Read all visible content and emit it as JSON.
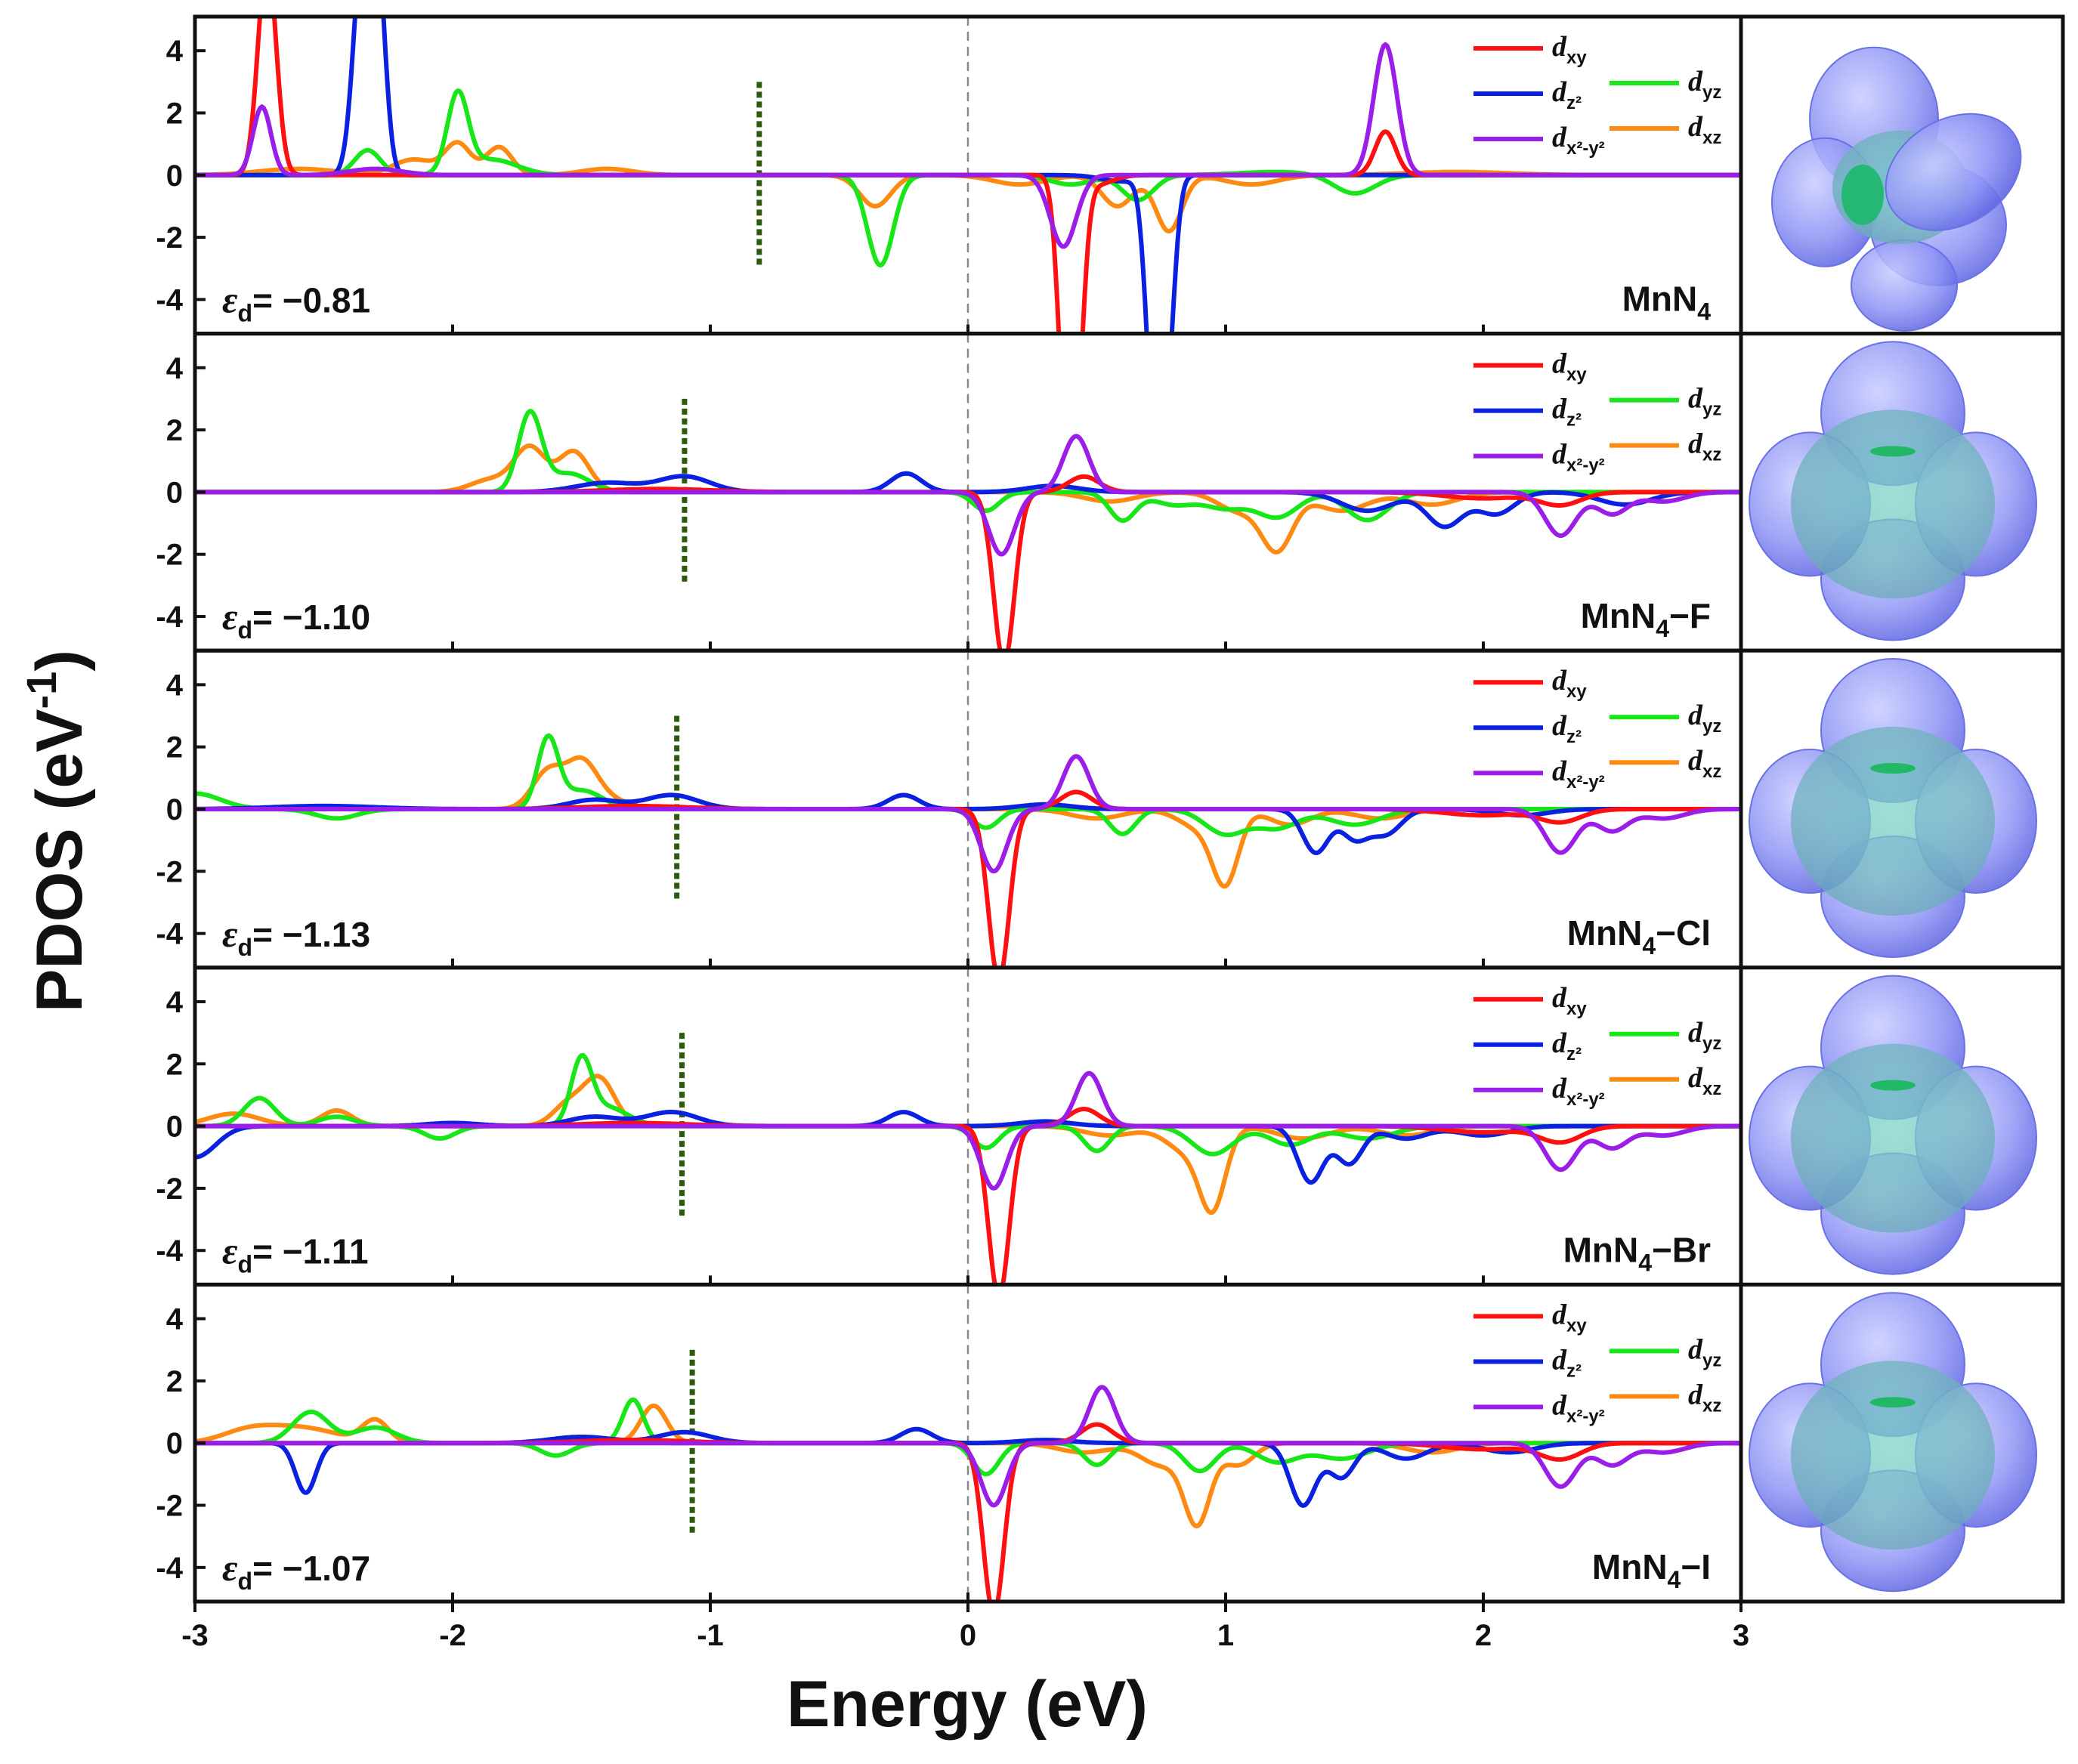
{
  "chart_data": {
    "type": "line",
    "title": "",
    "xlabel": "Energy (eV)",
    "ylabel": "PDOS  (eV",
    "ylabel_sup": "-1",
    "ylabel_close": ")",
    "xlim": [
      -3,
      3
    ],
    "ylim": [
      -5,
      5
    ],
    "x_ticks": [
      -3,
      -2,
      -1,
      0,
      1,
      2,
      3
    ],
    "y_ticks": [
      4,
      2,
      0,
      -2,
      -4
    ],
    "fermi_level": 0,
    "legend": [
      {
        "key": "dxy",
        "base": "d",
        "sub": "xy",
        "color": "#ff1010"
      },
      {
        "key": "dz2",
        "base": "d",
        "sub": "z²",
        "color": "#0a22e0"
      },
      {
        "key": "dx2y2",
        "base": "d",
        "sub": "x²-y²",
        "color": "#9a1ee8"
      },
      {
        "key": "dyz",
        "base": "d",
        "sub": "yz",
        "color": "#18e618"
      },
      {
        "key": "dxz",
        "base": "d",
        "sub": "xz",
        "color": "#ff8a12"
      }
    ],
    "d_band_center_line_color": "#2d5a0e",
    "panels": [
      {
        "name_main": "MnN",
        "name_sub": "4",
        "name_tail": "",
        "ed_label": "= −0.81",
        "d_band_center": -0.81,
        "peaks": {
          "dxy": [
            [
              -2.72,
              7.0,
              0.035
            ],
            [
              1.62,
              1.4,
              0.04
            ],
            [
              0.38,
              -7.0,
              0.03
            ],
            [
              0.42,
              -6.0,
              0.03
            ],
            [
              0.5,
              -0.3,
              0.06
            ]
          ],
          "dz2": [
            [
              -2.35,
              7.0,
              0.035
            ],
            [
              -2.29,
              6.0,
              0.03
            ],
            [
              0.72,
              -7.0,
              0.03
            ],
            [
              0.77,
              -6.0,
              0.03
            ],
            [
              0.6,
              -0.2,
              0.08
            ]
          ],
          "dx2y2": [
            [
              -2.74,
              2.2,
              0.035
            ],
            [
              1.62,
              4.2,
              0.045
            ],
            [
              0.37,
              -2.3,
              0.05
            ],
            [
              -2.3,
              0.2,
              0.1
            ]
          ],
          "dyz": [
            [
              -1.98,
              2.5,
              0.04
            ],
            [
              -2.33,
              0.8,
              0.05
            ],
            [
              -1.85,
              0.5,
              0.1
            ],
            [
              -0.34,
              -2.9,
              0.05
            ],
            [
              0.66,
              -0.8,
              0.06
            ],
            [
              0.4,
              -0.3,
              0.08
            ],
            [
              1.2,
              0.1,
              0.15
            ],
            [
              1.5,
              -0.6,
              0.08
            ]
          ],
          "dxz": [
            [
              -1.98,
              1.0,
              0.05
            ],
            [
              -1.82,
              0.9,
              0.05
            ],
            [
              -2.15,
              0.5,
              0.08
            ],
            [
              -2.6,
              0.2,
              0.15
            ],
            [
              -1.4,
              0.2,
              0.1
            ],
            [
              -0.36,
              -1.0,
              0.06
            ],
            [
              0.78,
              -1.8,
              0.05
            ],
            [
              0.58,
              -1.0,
              0.06
            ],
            [
              0.2,
              -0.3,
              0.1
            ],
            [
              1.1,
              -0.3,
              0.1
            ],
            [
              1.9,
              0.1,
              0.2
            ]
          ]
        }
      },
      {
        "name_main": "MnN",
        "name_sub": "4",
        "name_tail": "−F",
        "ed_label": "= −1.10",
        "d_band_center": -1.1,
        "peaks": {
          "dxy": [
            [
              0.14,
              -5.5,
              0.04
            ],
            [
              0.45,
              0.5,
              0.06
            ],
            [
              -1.2,
              0.1,
              0.2
            ],
            [
              2.3,
              -0.4,
              0.08
            ],
            [
              2.0,
              -0.2,
              0.15
            ]
          ],
          "dz2": [
            [
              -1.1,
              0.5,
              0.1
            ],
            [
              -1.4,
              0.3,
              0.12
            ],
            [
              -0.24,
              0.6,
              0.06
            ],
            [
              0.33,
              0.2,
              0.1
            ],
            [
              1.55,
              -0.6,
              0.1
            ],
            [
              1.85,
              -1.1,
              0.07
            ],
            [
              2.05,
              -0.7,
              0.07
            ],
            [
              2.55,
              -0.4,
              0.1
            ]
          ],
          "dx2y2": [
            [
              0.42,
              1.8,
              0.05
            ],
            [
              0.13,
              -2.0,
              0.05
            ],
            [
              2.3,
              -1.4,
              0.06
            ],
            [
              2.5,
              -0.7,
              0.06
            ],
            [
              2.7,
              -0.3,
              0.08
            ]
          ],
          "dyz": [
            [
              -1.7,
              2.5,
              0.045
            ],
            [
              -1.55,
              0.6,
              0.08
            ],
            [
              0.07,
              -0.6,
              0.05
            ],
            [
              0.6,
              -0.9,
              0.05
            ],
            [
              0.8,
              -0.4,
              0.08
            ],
            [
              1.2,
              -0.8,
              0.08
            ],
            [
              1.55,
              -0.9,
              0.08
            ],
            [
              1.0,
              -0.5,
              0.08
            ]
          ],
          "dxz": [
            [
              -1.7,
              1.4,
              0.06
            ],
            [
              -1.53,
              1.3,
              0.06
            ],
            [
              -1.85,
              0.4,
              0.08
            ],
            [
              1.2,
              -1.8,
              0.06
            ],
            [
              1.05,
              -0.6,
              0.08
            ],
            [
              1.45,
              -0.6,
              0.1
            ],
            [
              0.55,
              -0.3,
              0.1
            ],
            [
              1.8,
              -0.4,
              0.1
            ]
          ]
        }
      },
      {
        "name_main": "MnN",
        "name_sub": "4",
        "name_tail": "−Cl",
        "ed_label": "= −1.13",
        "d_band_center": -1.13,
        "peaks": {
          "dxy": [
            [
              0.12,
              -5.5,
              0.04
            ],
            [
              0.42,
              0.55,
              0.06
            ],
            [
              2.3,
              -0.4,
              0.08
            ],
            [
              2.0,
              -0.2,
              0.15
            ],
            [
              -1.3,
              0.1,
              0.2
            ]
          ],
          "dz2": [
            [
              -1.15,
              0.45,
              0.1
            ],
            [
              -1.45,
              0.3,
              0.1
            ],
            [
              -0.25,
              0.45,
              0.06
            ],
            [
              0.3,
              0.15,
              0.1
            ],
            [
              1.35,
              -1.4,
              0.05
            ],
            [
              1.5,
              -0.9,
              0.05
            ],
            [
              1.62,
              -0.8,
              0.06
            ],
            [
              2.15,
              -0.2,
              0.1
            ],
            [
              -2.5,
              0.1,
              0.2
            ]
          ],
          "dx2y2": [
            [
              0.42,
              1.7,
              0.05
            ],
            [
              0.1,
              -2.0,
              0.05
            ],
            [
              2.3,
              -1.4,
              0.06
            ],
            [
              2.5,
              -0.7,
              0.06
            ],
            [
              2.7,
              -0.3,
              0.08
            ]
          ],
          "dyz": [
            [
              -1.63,
              2.2,
              0.04
            ],
            [
              -1.5,
              0.6,
              0.08
            ],
            [
              0.07,
              -0.6,
              0.05
            ],
            [
              0.6,
              -0.8,
              0.05
            ],
            [
              1.0,
              -0.8,
              0.08
            ],
            [
              1.2,
              -0.6,
              0.08
            ],
            [
              1.5,
              -0.5,
              0.1
            ],
            [
              -2.45,
              -0.3,
              0.08
            ],
            [
              -3.0,
              0.5,
              0.1
            ]
          ],
          "dxz": [
            [
              -1.63,
              1.2,
              0.06
            ],
            [
              -1.5,
              1.4,
              0.06
            ],
            [
              -1.4,
              0.3,
              0.08
            ],
            [
              1.0,
              -2.2,
              0.05
            ],
            [
              0.9,
              -0.6,
              0.08
            ],
            [
              1.25,
              -0.5,
              0.08
            ],
            [
              0.5,
              -0.3,
              0.1
            ],
            [
              1.6,
              -0.3,
              0.1
            ],
            [
              -2.5,
              0.1,
              0.15
            ]
          ]
        }
      },
      {
        "name_main": "MnN",
        "name_sub": "4",
        "name_tail": "−Br",
        "ed_label": "= −1.11",
        "d_band_center": -1.11,
        "peaks": {
          "dxy": [
            [
              0.12,
              -5.5,
              0.04
            ],
            [
              0.45,
              0.55,
              0.06
            ],
            [
              2.3,
              -0.5,
              0.08
            ],
            [
              2.0,
              -0.2,
              0.15
            ],
            [
              -1.3,
              0.1,
              0.2
            ]
          ],
          "dz2": [
            [
              -1.15,
              0.45,
              0.1
            ],
            [
              -1.45,
              0.3,
              0.1
            ],
            [
              -0.25,
              0.45,
              0.06
            ],
            [
              0.3,
              0.15,
              0.1
            ],
            [
              1.33,
              -1.8,
              0.05
            ],
            [
              1.48,
              -1.2,
              0.05
            ],
            [
              1.7,
              -0.4,
              0.08
            ],
            [
              2.0,
              -0.3,
              0.1
            ],
            [
              -3.0,
              -1.0,
              0.08
            ],
            [
              -2.0,
              0.1,
              0.1
            ]
          ],
          "dx2y2": [
            [
              0.47,
              1.7,
              0.05
            ],
            [
              0.1,
              -2.0,
              0.05
            ],
            [
              2.3,
              -1.4,
              0.06
            ],
            [
              2.5,
              -0.7,
              0.06
            ],
            [
              2.7,
              -0.3,
              0.08
            ]
          ],
          "dyz": [
            [
              -1.5,
              2.0,
              0.04
            ],
            [
              -1.4,
              0.6,
              0.08
            ],
            [
              -2.75,
              0.9,
              0.06
            ],
            [
              -2.45,
              0.3,
              0.07
            ],
            [
              -2.05,
              -0.4,
              0.06
            ],
            [
              0.07,
              -0.7,
              0.05
            ],
            [
              0.5,
              -0.8,
              0.05
            ],
            [
              0.95,
              -0.9,
              0.08
            ],
            [
              1.25,
              -0.6,
              0.08
            ],
            [
              1.55,
              -0.4,
              0.1
            ]
          ],
          "dxz": [
            [
              -1.43,
              1.5,
              0.06
            ],
            [
              -1.55,
              0.7,
              0.06
            ],
            [
              -2.85,
              0.4,
              0.1
            ],
            [
              -2.45,
              0.5,
              0.06
            ],
            [
              0.95,
              -2.4,
              0.05
            ],
            [
              0.85,
              -0.8,
              0.08
            ],
            [
              0.55,
              -0.3,
              0.1
            ],
            [
              1.3,
              -0.4,
              0.1
            ],
            [
              1.7,
              -0.3,
              0.1
            ]
          ]
        }
      },
      {
        "name_main": "MnN",
        "name_sub": "4",
        "name_tail": "−I",
        "ed_label": "= −1.07",
        "d_band_center": -1.07,
        "peaks": {
          "dxy": [
            [
              0.1,
              -5.5,
              0.04
            ],
            [
              0.5,
              0.6,
              0.06
            ],
            [
              2.3,
              -0.5,
              0.08
            ],
            [
              2.0,
              -0.2,
              0.15
            ],
            [
              -1.3,
              0.1,
              0.2
            ]
          ],
          "dz2": [
            [
              -2.57,
              -1.6,
              0.04
            ],
            [
              -1.1,
              0.35,
              0.1
            ],
            [
              -1.5,
              0.2,
              0.12
            ],
            [
              -0.2,
              0.45,
              0.06
            ],
            [
              0.3,
              0.1,
              0.1
            ],
            [
              1.3,
              -2.0,
              0.05
            ],
            [
              1.45,
              -1.1,
              0.05
            ],
            [
              1.7,
              -0.5,
              0.08
            ],
            [
              2.1,
              -0.3,
              0.1
            ]
          ],
          "dx2y2": [
            [
              0.52,
              1.8,
              0.05
            ],
            [
              0.1,
              -2.0,
              0.05
            ],
            [
              2.3,
              -1.4,
              0.06
            ],
            [
              2.5,
              -0.7,
              0.06
            ],
            [
              2.7,
              -0.3,
              0.08
            ]
          ],
          "dyz": [
            [
              -1.3,
              1.4,
              0.04
            ],
            [
              -2.55,
              1.0,
              0.07
            ],
            [
              -2.3,
              0.5,
              0.08
            ],
            [
              -1.6,
              -0.4,
              0.06
            ],
            [
              0.07,
              -1.0,
              0.05
            ],
            [
              0.5,
              -0.7,
              0.05
            ],
            [
              0.9,
              -0.9,
              0.06
            ],
            [
              1.2,
              -0.6,
              0.08
            ],
            [
              1.45,
              -0.5,
              0.1
            ]
          ],
          "dxz": [
            [
              -1.22,
              1.2,
              0.05
            ],
            [
              -2.3,
              0.7,
              0.05
            ],
            [
              -2.6,
              0.5,
              0.15
            ],
            [
              -2.8,
              0.3,
              0.1
            ],
            [
              0.89,
              -2.5,
              0.05
            ],
            [
              0.75,
              -0.7,
              0.08
            ],
            [
              1.05,
              -0.7,
              0.06
            ],
            [
              0.45,
              -0.3,
              0.1
            ],
            [
              1.8,
              -0.3,
              0.1
            ]
          ]
        }
      }
    ]
  }
}
